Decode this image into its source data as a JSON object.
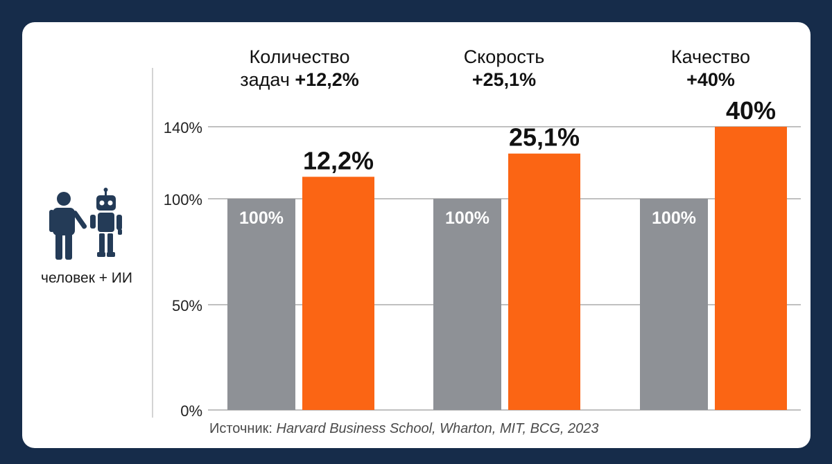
{
  "legend_label": "человек + ИИ",
  "legend_icons": [
    "person-icon",
    "robot-icon"
  ],
  "headers": [
    {
      "line1": "Количество",
      "line2_normal": "задач ",
      "line2_bold": "+12,2%"
    },
    {
      "line1": "Скорость",
      "line2_normal": "",
      "line2_bold": "+25,1%"
    },
    {
      "line1": "Качество",
      "line2_normal": "",
      "line2_bold": "+40%"
    }
  ],
  "source": {
    "label": "Источник:",
    "text": "Harvard Business School, Wharton, MIT, BCG, 2023"
  },
  "colors": {
    "baseline": "#8e9196",
    "ai": "#fb6514",
    "background": "#162c4a",
    "card": "#ffffff"
  },
  "chart_data": {
    "type": "bar",
    "categories": [
      "Количество задач",
      "Скорость",
      "Качество"
    ],
    "series": [
      {
        "values": [
          100,
          100,
          100
        ],
        "labels": [
          "100%",
          "100%",
          "100%"
        ]
      },
      {
        "values": [
          112.2,
          125.1,
          140
        ],
        "labels": [
          "12,2%",
          "25,1%",
          "40%"
        ]
      }
    ],
    "y_ticks": [
      0,
      50,
      100,
      140
    ],
    "y_tick_labels": [
      "0%",
      "50%",
      "100%",
      "140%"
    ],
    "ylim": [
      0,
      140
    ],
    "grid": true
  }
}
